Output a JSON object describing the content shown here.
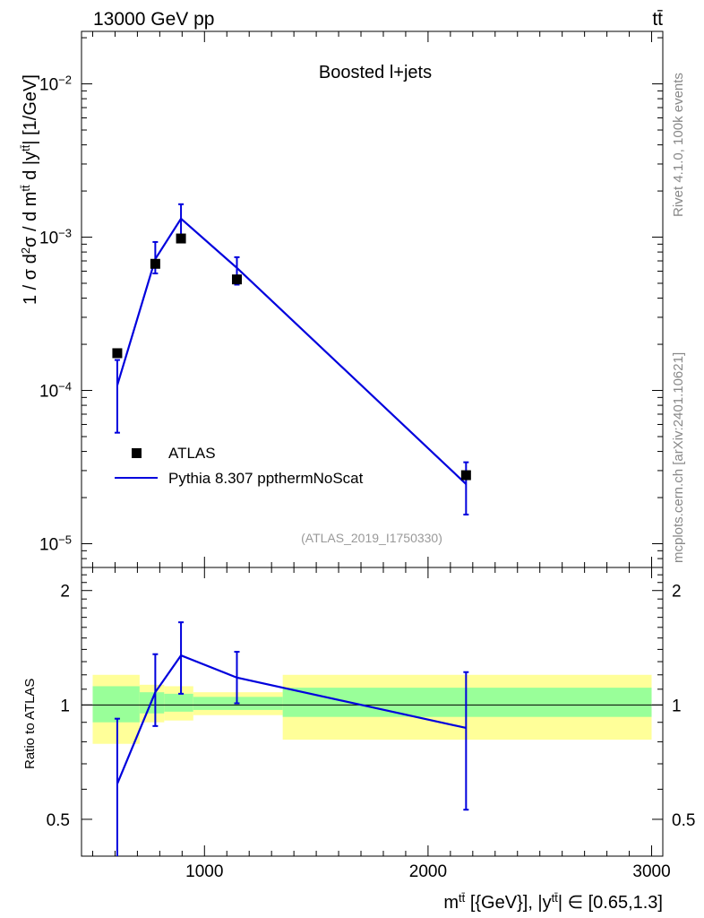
{
  "header": {
    "left": "13000 GeV pp",
    "right": "tt̄"
  },
  "side_labels": {
    "rivet": "Rivet 4.1.0,  100k events",
    "mcplots": "mcplots.cern.ch [arXiv:2401.10621]"
  },
  "chart_data": {
    "type": "scatter",
    "title": "Boosted l+jets",
    "analysis_tag": "(ATLAS_2019_I1750330)",
    "ylabel_main": "1 / σ d²σ / d m^{tt̄} d |y^{tt̄}| [1/GeV]",
    "ylabel_ratio": "Ratio to ATLAS",
    "xlabel": "m^{tt̄} [{GeV}], |y^{tt̄}| ∈ [0.65,1.3]",
    "xlim": [
      450,
      3050
    ],
    "ylim_main": [
      7e-06,
      0.022
    ],
    "ylim_ratio": [
      0.4,
      2.3
    ],
    "yscale_main": "log",
    "yscale_ratio": "log",
    "x_ticks": [
      1000,
      2000,
      3000
    ],
    "x_tick_labels": [
      "1000",
      "2000",
      "3000"
    ],
    "y_ticks_main": [
      1e-05,
      0.0001,
      0.001,
      0.01
    ],
    "y_tick_labels_main": [
      [
        "10",
        "−5"
      ],
      [
        "10",
        "−4"
      ],
      [
        "10",
        "−3"
      ],
      [
        "10",
        "−2"
      ]
    ],
    "y_ticks_ratio": [
      0.5,
      1,
      2
    ],
    "y_tick_labels_ratio": [
      "0.5",
      "1",
      "2"
    ],
    "legend": {
      "position": "bottom-left",
      "entries": [
        "ATLAS",
        "Pythia 8.307 ppthermNoScat"
      ]
    },
    "series": [
      {
        "name": "ATLAS",
        "style": "markers",
        "color": "#000000",
        "x": [
          610,
          780,
          895,
          1145,
          2170
        ],
        "y": [
          0.000175,
          0.00067,
          0.00098,
          0.00053,
          2.8e-05
        ],
        "yerr": [
          4e-06,
          2e-05,
          3e-05,
          2e-05,
          1.5e-06
        ]
      },
      {
        "name": "Pythia 8.307 ppthermNoScat",
        "style": "line",
        "color": "#0000dd",
        "x": [
          610,
          780,
          895,
          1145,
          2170
        ],
        "y": [
          0.000108,
          0.00072,
          0.00132,
          0.00063,
          2.45e-05
        ],
        "yerr_low": [
          5.5e-05,
          0.00014,
          0.00032,
          0.00014,
          9e-06
        ],
        "yerr_high": [
          5e-05,
          0.00021,
          0.00032,
          0.00011,
          9.5e-06
        ]
      }
    ],
    "ratio": {
      "x": [
        610,
        780,
        895,
        1145,
        2170
      ],
      "y": [
        0.62,
        1.08,
        1.35,
        1.18,
        0.87
      ],
      "yerr_low": [
        0.3,
        0.2,
        0.28,
        0.17,
        0.34
      ],
      "yerr_high": [
        0.3,
        0.28,
        0.3,
        0.2,
        0.35
      ],
      "bands": [
        {
          "x0": 500,
          "x1": 710,
          "inner": [
            0.9,
            1.12
          ],
          "outer": [
            0.79,
            1.2
          ]
        },
        {
          "x0": 710,
          "x1": 820,
          "inner": [
            0.95,
            1.08
          ],
          "outer": [
            0.9,
            1.13
          ]
        },
        {
          "x0": 820,
          "x1": 950,
          "inner": [
            0.96,
            1.07
          ],
          "outer": [
            0.91,
            1.12
          ]
        },
        {
          "x0": 950,
          "x1": 1350,
          "inner": [
            0.97,
            1.05
          ],
          "outer": [
            0.94,
            1.08
          ]
        },
        {
          "x0": 1350,
          "x1": 3000,
          "inner": [
            0.93,
            1.11
          ],
          "outer": [
            0.81,
            1.2
          ]
        }
      ]
    },
    "colors": {
      "data": "#000000",
      "mc": "#0000dd",
      "band_inner": "#99ff99",
      "band_outer": "#ffff99",
      "muted_text": "#888888"
    }
  }
}
